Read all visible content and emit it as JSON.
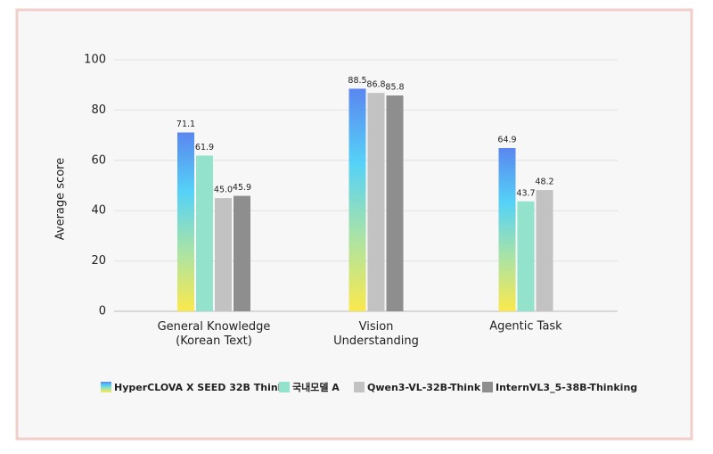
{
  "chart_data": {
    "type": "bar",
    "y_label": "Average score",
    "categories": [
      "General Knowledge\n(Korean Text)",
      "Vision\nUnderstanding",
      "Agentic Task"
    ],
    "series": [
      {
        "name": "HyperCLOVA X SEED 32B Think",
        "color": [
          "#5a86f0",
          "#55d2f7",
          "#a9e3a6",
          "#fbe94c"
        ],
        "values": [
          71.1,
          88.5,
          64.9
        ]
      },
      {
        "name": "국내모델 A",
        "color": "#93e2cb",
        "values": [
          61.9,
          null,
          43.7
        ]
      },
      {
        "name": "Qwen3-VL-32B-Think",
        "color": "#c2c2c2",
        "values": [
          45.0,
          86.8,
          48.2
        ],
        "value_labels": [
          "45.0",
          "86.8",
          "48.2"
        ]
      },
      {
        "name": "InternVL3_5-38B-Thinking",
        "color": "#8e8e8e",
        "values": [
          45.9,
          85.8,
          null
        ]
      }
    ],
    "ylim": [
      0,
      100
    ],
    "yticks": [
      0,
      20,
      40,
      60,
      80,
      100
    ],
    "grid": true,
    "legend": "bottom"
  }
}
